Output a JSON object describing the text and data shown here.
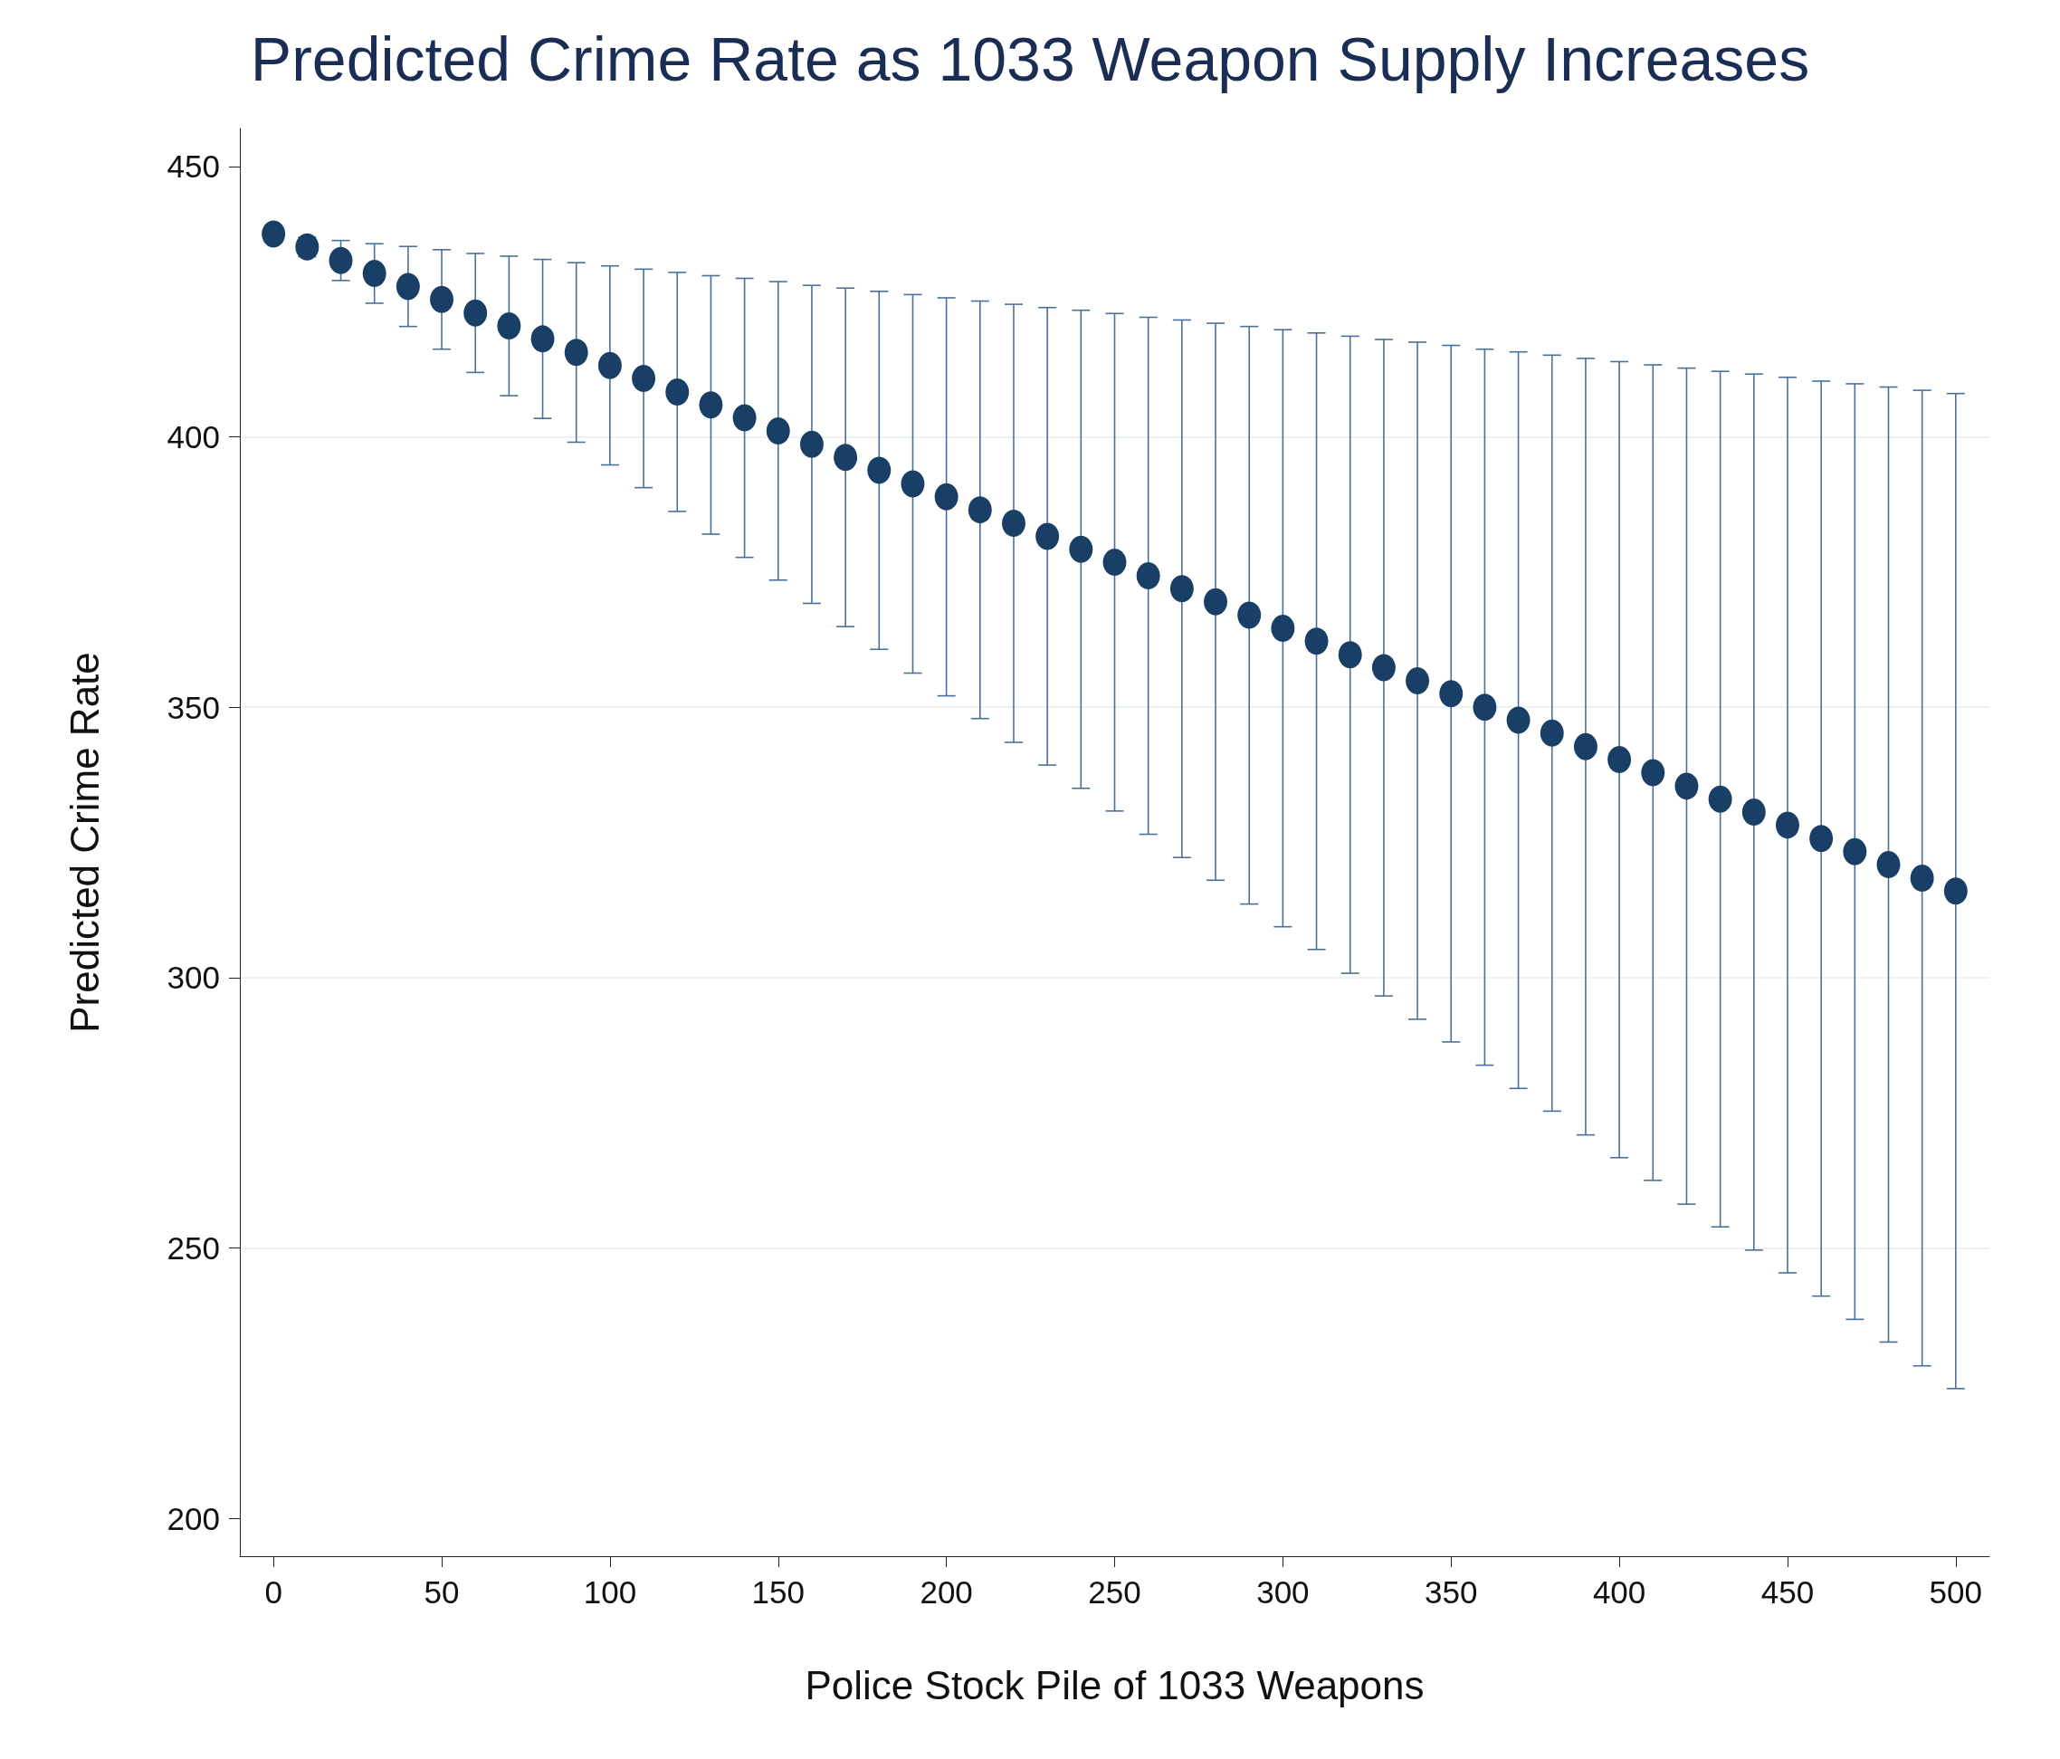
{
  "chart_data": {
    "type": "scatter",
    "title": "Predicted Crime Rate as 1033 Weapon Supply Increases",
    "xlabel": "Police Stock Pile of 1033 Weapons",
    "ylabel": "Predicted Crime Rate",
    "x": [
      0,
      10,
      20,
      30,
      40,
      50,
      60,
      70,
      80,
      90,
      100,
      110,
      120,
      130,
      140,
      150,
      160,
      170,
      180,
      190,
      200,
      210,
      220,
      230,
      240,
      250,
      260,
      270,
      280,
      290,
      300,
      310,
      320,
      330,
      340,
      350,
      360,
      370,
      380,
      390,
      400,
      410,
      420,
      430,
      440,
      450,
      460,
      470,
      480,
      490,
      500
    ],
    "values": [
      437.5,
      435.1,
      432.6,
      430.2,
      427.8,
      425.4,
      422.9,
      420.5,
      418.1,
      415.6,
      413.2,
      410.8,
      408.3,
      405.9,
      403.5,
      401.1,
      398.6,
      396.2,
      393.8,
      391.3,
      388.9,
      386.5,
      384.0,
      381.6,
      379.2,
      376.8,
      374.3,
      371.9,
      369.5,
      367.0,
      364.6,
      362.2,
      359.7,
      357.3,
      354.9,
      352.5,
      350.0,
      347.6,
      345.2,
      342.7,
      340.3,
      337.9,
      335.4,
      333.0,
      330.6,
      328.2,
      325.7,
      323.3,
      320.9,
      318.4,
      316.0
    ],
    "errors": [
      0,
      1.8,
      3.7,
      5.5,
      7.4,
      9.2,
      11.0,
      12.9,
      14.7,
      16.6,
      18.4,
      20.2,
      22.1,
      23.9,
      25.8,
      27.6,
      29.4,
      31.3,
      33.1,
      35.0,
      36.8,
      38.6,
      40.5,
      42.3,
      44.2,
      46.0,
      47.8,
      49.7,
      51.5,
      53.4,
      55.2,
      57.0,
      58.9,
      60.7,
      62.6,
      64.4,
      66.2,
      68.1,
      69.9,
      71.8,
      73.6,
      75.4,
      77.3,
      79.1,
      81.0,
      82.8,
      84.6,
      86.5,
      88.3,
      90.2,
      92.0
    ],
    "color": "#1a3f66",
    "marker": "circle",
    "xlim": [
      -10,
      510
    ],
    "xticks": [
      0,
      50,
      100,
      150,
      200,
      250,
      300,
      350,
      400,
      450,
      500
    ],
    "ylim": [
      193,
      457
    ],
    "yticks": [
      200,
      250,
      300,
      350,
      400,
      450
    ],
    "grid": "y"
  }
}
